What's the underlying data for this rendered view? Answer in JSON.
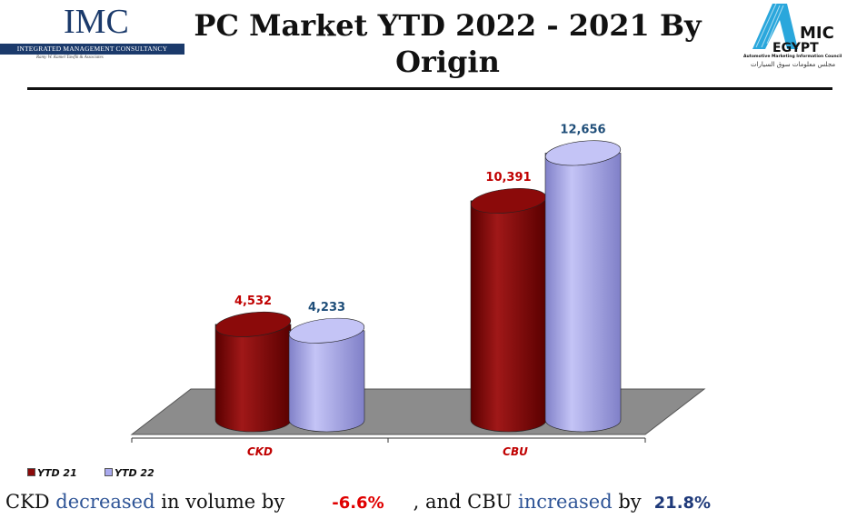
{
  "header": {
    "title": "PC Market YTD 2022 - 2021 By Origin",
    "left_logo": {
      "name": "IMC",
      "band": "Integrated Management Consultancy",
      "tagline": "Ramy W. Kamel Tawfik & Associates"
    },
    "right_logo": {
      "name": "AMIC EGYPT",
      "subtitle": "Automotive Marketing Information Council",
      "arabic": "مجلس معلومات سوق السيارات"
    }
  },
  "colors": {
    "ytd21": "#8b0a0a",
    "ytd22": "#a9a9ee",
    "floor": "#8c8c8c",
    "label21": "#c00000",
    "label22": "#1f4e79"
  },
  "chart_data": {
    "type": "bar",
    "style": "3d-cylinder",
    "categories": [
      "CKD",
      "CBU"
    ],
    "series": [
      {
        "name": "YTD 21",
        "values": [
          4532,
          10391
        ],
        "labels": [
          "4,532",
          "10,391"
        ]
      },
      {
        "name": "YTD 22",
        "values": [
          4233,
          12656
        ],
        "labels": [
          "4,233",
          "12,656"
        ]
      }
    ],
    "legend_position": "bottom-left",
    "grid": false
  },
  "summary": {
    "part1": "CKD ",
    "word1": "decreased",
    "part2": " in volume by",
    "value1": "-6.6%",
    "part3": ", and CBU ",
    "word2": "increased",
    "part4": " by",
    "value2": "21.8%"
  }
}
